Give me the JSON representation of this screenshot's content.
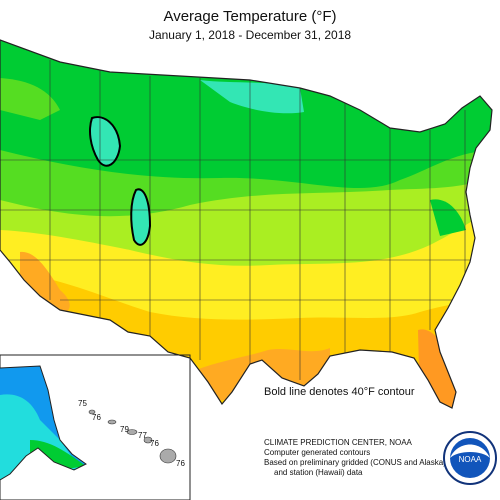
{
  "map": {
    "title": "Average Temperature (°F)",
    "subtitle": "January 1, 2018 - December 31, 2018",
    "contour_note": "Bold line denotes 40°F contour",
    "hawaii_labels": [
      "75",
      "76",
      "79",
      "77",
      "76",
      "76"
    ],
    "palette": {
      "aqua": "#33e6b4",
      "green": "#00cc33",
      "light_green": "#55dd22",
      "yellow_green": "#aaee22",
      "yellow": "#ffee22",
      "dark_yellow": "#ffcc00",
      "orange": "#ffaa22",
      "deep_orange": "#ff9922",
      "alaska_blue": "#1199ee",
      "alaska_cyan": "#22dddd",
      "boundary": "#333333",
      "bold_contour": "#000000"
    }
  },
  "credits": {
    "line1": "CLIMATE PREDICTION CENTER, NOAA",
    "line2": "Computer generated contours",
    "line3": "Based on preliminary gridded (CONUS and Alaska)",
    "line4": "and station (Hawaii) data",
    "logo_text": "NOAA"
  }
}
